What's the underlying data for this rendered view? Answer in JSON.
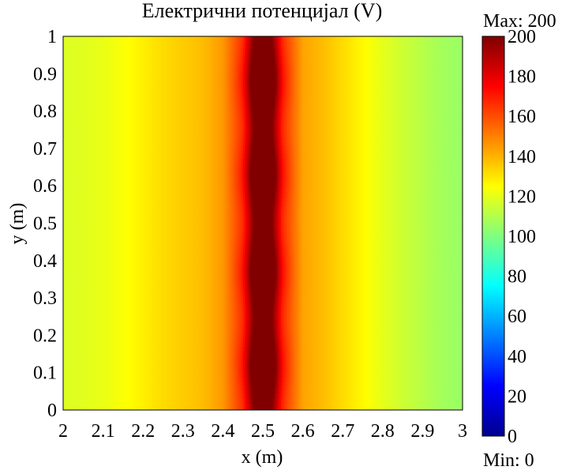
{
  "chart_data": {
    "type": "heatmap",
    "title": "Електрични потенцијал (V)",
    "xlabel": "x (m)",
    "ylabel": "y (m)",
    "xlim": [
      2,
      3
    ],
    "ylim": [
      0,
      1
    ],
    "x_ticks": [
      "2",
      "2.1",
      "2.2",
      "2.3",
      "2.4",
      "2.5",
      "2.6",
      "2.7",
      "2.8",
      "2.9",
      "3"
    ],
    "y_ticks": [
      "0",
      "0.1",
      "0.2",
      "0.3",
      "0.4",
      "0.5",
      "0.6",
      "0.7",
      "0.8",
      "0.9",
      "1"
    ],
    "colorbar": {
      "max_label": "Max: 200",
      "min_label": "Min: 0",
      "ticks": [
        "0",
        "20",
        "40",
        "60",
        "80",
        "100",
        "120",
        "140",
        "160",
        "180",
        "200"
      ],
      "range": [
        0,
        200
      ],
      "colormap": "jet"
    },
    "field": {
      "description_values": "potential in V, peak 200 at x=2.5, ~140 at x=2.3 and x=2.7, ~120 at x=2.2 and x=2.8, ~105 at x=2.95",
      "profile_x": [
        2.0,
        2.05,
        2.1,
        2.15,
        2.2,
        2.25,
        2.3,
        2.35,
        2.4,
        2.45,
        2.48,
        2.5,
        2.52,
        2.55,
        2.6,
        2.65,
        2.7,
        2.75,
        2.8,
        2.85,
        2.9,
        2.95,
        3.0
      ],
      "profile_v": [
        118,
        119,
        121,
        124,
        128,
        132,
        135,
        138,
        145,
        165,
        200,
        200,
        200,
        165,
        143,
        138,
        132,
        126,
        120,
        115,
        111,
        107,
        105
      ],
      "bulge_y_centers": [
        0.12,
        0.37,
        0.63,
        0.88
      ],
      "bulge_peak_v": 170
    }
  }
}
